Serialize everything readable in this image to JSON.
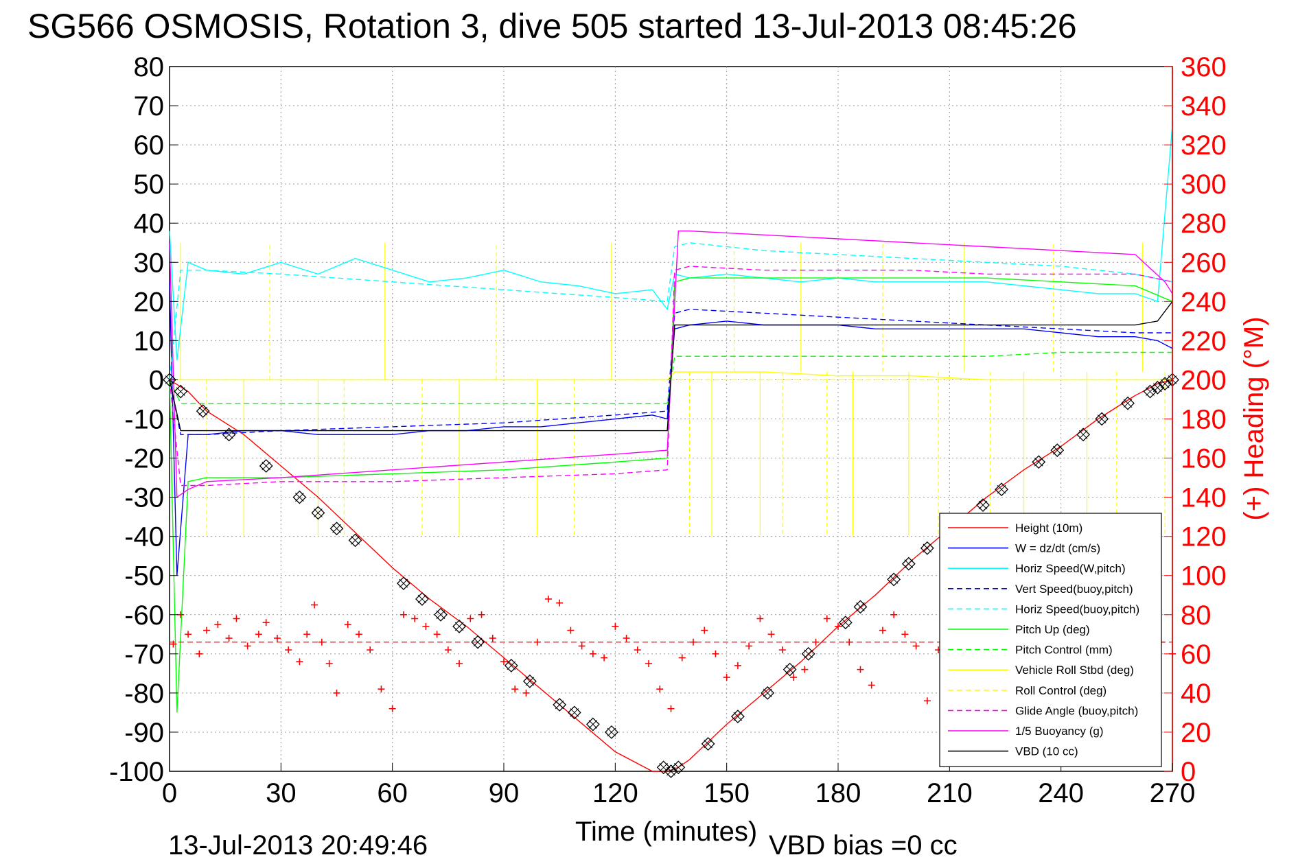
{
  "chart_data": {
    "type": "line",
    "title": "SG566 OSMOSIS, Rotation 3, dive 505 started 13-Jul-2013 08:45:26",
    "xlabel": "Time (minutes)",
    "ylabel_right": "(+) Heading (°M)",
    "footer_timestamp": "13-Jul-2013 20:49:46",
    "footer_vbd": "VBD bias =0 cc",
    "xlim": [
      0,
      270
    ],
    "ylim": [
      -100,
      80
    ],
    "ylim_right": [
      0,
      360
    ],
    "x_ticks": [
      "0",
      "30",
      "60",
      "90",
      "120",
      "150",
      "180",
      "210",
      "240",
      "270"
    ],
    "y_ticks": [
      "80",
      "70",
      "60",
      "50",
      "40",
      "30",
      "20",
      "10",
      "0",
      "-10",
      "-20",
      "-30",
      "-40",
      "-50",
      "-60",
      "-70",
      "-80",
      "-90",
      "-100"
    ],
    "y_right_ticks": [
      "360",
      "340",
      "320",
      "300",
      "280",
      "260",
      "240",
      "220",
      "200",
      "180",
      "160",
      "140",
      "120",
      "100",
      "80",
      "60",
      "40",
      "20",
      "0"
    ],
    "grid": true,
    "legend_position": "bottom-right",
    "series": [
      {
        "name": "Height (10m)",
        "color": "#ff0000",
        "style": "solid",
        "x": [
          0,
          5,
          10,
          20,
          30,
          40,
          50,
          60,
          70,
          80,
          90,
          100,
          110,
          120,
          130,
          134,
          137,
          140,
          150,
          160,
          170,
          180,
          190,
          200,
          210,
          220,
          230,
          240,
          250,
          260,
          266,
          270
        ],
        "y": [
          0,
          -3,
          -8,
          -14,
          -22,
          -30,
          -39,
          -48,
          -56,
          -63,
          -71,
          -79,
          -87,
          -95,
          -100,
          -100,
          -99,
          -97,
          -88,
          -80,
          -72,
          -63,
          -55,
          -46,
          -38,
          -30,
          -23,
          -17,
          -10,
          -4,
          -1,
          0
        ]
      },
      {
        "name": "W = dz/dt (cm/s)",
        "color": "#0000ff",
        "style": "solid",
        "x": [
          0,
          2,
          5,
          10,
          20,
          30,
          40,
          50,
          60,
          70,
          80,
          90,
          100,
          110,
          120,
          130,
          134,
          136,
          140,
          150,
          160,
          170,
          180,
          190,
          200,
          210,
          220,
          230,
          240,
          250,
          260,
          266,
          270
        ],
        "y": [
          25,
          -50,
          -14,
          -14,
          -13,
          -13,
          -14,
          -14,
          -14,
          -13,
          -13,
          -12,
          -12,
          -11,
          -10,
          -9,
          -10,
          13,
          14,
          15,
          14,
          14,
          14,
          13,
          13,
          13,
          13,
          13,
          12,
          11,
          11,
          10,
          8
        ]
      },
      {
        "name": "Horiz Speed(W,pitch)",
        "color": "#00ffff",
        "style": "solid",
        "x": [
          0,
          2,
          5,
          10,
          20,
          30,
          40,
          50,
          60,
          70,
          80,
          90,
          100,
          110,
          120,
          130,
          134,
          136,
          140,
          150,
          160,
          170,
          180,
          190,
          200,
          210,
          220,
          230,
          240,
          250,
          260,
          266,
          270
        ],
        "y": [
          38,
          5,
          30,
          28,
          27,
          30,
          27,
          31,
          28,
          25,
          26,
          28,
          25,
          24,
          22,
          23,
          18,
          27,
          26,
          27,
          26,
          25,
          26,
          25,
          25,
          25,
          25,
          24,
          23,
          22,
          22,
          20,
          65
        ]
      },
      {
        "name": "Vert Speed(buoy,pitch)",
        "color": "#0000ff",
        "style": "dashed",
        "x": [
          0,
          3,
          10,
          30,
          60,
          90,
          120,
          134,
          136,
          140,
          160,
          180,
          200,
          220,
          240,
          260,
          270
        ],
        "y": [
          0,
          -14,
          -14,
          -13,
          -12,
          -11,
          -9,
          -8,
          17,
          18,
          17,
          16,
          15,
          14,
          13,
          12,
          12
        ]
      },
      {
        "name": "Horiz Speed(buoy,pitch)",
        "color": "#00ffff",
        "style": "dashed",
        "x": [
          0,
          3,
          10,
          30,
          60,
          90,
          120,
          134,
          136,
          140,
          160,
          180,
          200,
          220,
          240,
          260,
          270
        ],
        "y": [
          0,
          28,
          28,
          27,
          25,
          23,
          21,
          20,
          34,
          35,
          33,
          32,
          31,
          30,
          29,
          27,
          25
        ]
      },
      {
        "name": "Pitch Up (deg)",
        "color": "#00ff00",
        "style": "solid",
        "x": [
          0,
          2,
          5,
          10,
          30,
          60,
          90,
          120,
          134,
          136,
          140,
          160,
          180,
          200,
          220,
          240,
          260,
          270
        ],
        "y": [
          0,
          -85,
          -26,
          -25,
          -25,
          -24,
          -23,
          -21,
          -20,
          25,
          26,
          26,
          26,
          26,
          26,
          25,
          24,
          20
        ]
      },
      {
        "name": "Pitch Control (mm)",
        "color": "#00ff00",
        "style": "dashed",
        "x": [
          0,
          3,
          10,
          30,
          60,
          90,
          120,
          134,
          136,
          140,
          160,
          180,
          200,
          220,
          240,
          260,
          270
        ],
        "y": [
          0,
          -6,
          -6,
          -6,
          -6,
          -6,
          -6,
          -6,
          6,
          6,
          6,
          6,
          6,
          6,
          7,
          7,
          7
        ]
      },
      {
        "name": "Vehicle Roll Stbd (deg)",
        "color": "#ffff00",
        "style": "solid",
        "x": [
          0,
          5,
          10,
          30,
          60,
          90,
          120,
          134,
          136,
          140,
          160,
          180,
          200,
          220,
          240,
          260,
          270
        ],
        "y": [
          0,
          0,
          0,
          0,
          0,
          0,
          0,
          0,
          2,
          2,
          2,
          1,
          1,
          0,
          0,
          0,
          0
        ]
      },
      {
        "name": "Roll Control (deg)",
        "color": "#ffff00",
        "style": "dashed",
        "x": [
          0,
          5,
          10,
          30,
          60,
          90,
          120,
          134,
          136,
          140,
          160,
          180,
          200,
          220,
          240,
          260,
          270
        ],
        "y": [
          0,
          0,
          0,
          0,
          0,
          0,
          0,
          0,
          0,
          0,
          0,
          0,
          0,
          0,
          0,
          0,
          0
        ]
      },
      {
        "name": "Glide Angle (buoy,pitch)",
        "color": "#ff00ff",
        "style": "dashed",
        "x": [
          0,
          3,
          10,
          30,
          60,
          90,
          120,
          134,
          136,
          140,
          160,
          180,
          200,
          220,
          240,
          260,
          270
        ],
        "y": [
          0,
          -27,
          -27,
          -26,
          -26,
          -25,
          -24,
          -23,
          28,
          29,
          28,
          28,
          28,
          27,
          27,
          27,
          25
        ]
      },
      {
        "name": "1/5 Buoyancy (g)",
        "color": "#ff00ff",
        "style": "solid",
        "x": [
          0,
          2,
          5,
          10,
          30,
          60,
          90,
          120,
          134,
          137,
          140,
          160,
          180,
          200,
          220,
          240,
          260,
          268,
          270
        ],
        "y": [
          35,
          -30,
          -28,
          -26,
          -25,
          -23,
          -21,
          -19,
          -18,
          38,
          38,
          37,
          36,
          35,
          34,
          33,
          32,
          25,
          22
        ]
      },
      {
        "name": "VBD (10 cc)",
        "color": "#000000",
        "style": "solid",
        "x": [
          0,
          3,
          10,
          30,
          60,
          90,
          120,
          134,
          136,
          140,
          160,
          180,
          200,
          220,
          240,
          260,
          266,
          270
        ],
        "y": [
          0,
          -13,
          -13,
          -13,
          -13,
          -13,
          -13,
          -13,
          14,
          14,
          14,
          14,
          14,
          14,
          14,
          14,
          15,
          20
        ]
      }
    ],
    "heading_right_axis": {
      "name": "(+) Heading (°M)",
      "color": "#ff0000",
      "marker": "+",
      "target_heading": 66,
      "x": [
        1,
        3,
        5,
        8,
        10,
        13,
        16,
        18,
        21,
        24,
        26,
        29,
        32,
        35,
        37,
        39,
        41,
        43,
        45,
        48,
        51,
        54,
        57,
        60,
        63,
        66,
        69,
        72,
        75,
        78,
        81,
        84,
        87,
        90,
        93,
        96,
        99,
        102,
        105,
        108,
        111,
        114,
        117,
        120,
        123,
        126,
        129,
        132,
        135,
        138,
        141,
        144,
        147,
        150,
        153,
        156,
        159,
        162,
        165,
        168,
        171,
        174,
        177,
        180,
        183,
        186,
        189,
        192,
        195,
        198,
        201,
        204,
        207,
        210,
        213,
        216,
        219,
        222,
        225,
        228,
        231,
        234,
        237,
        240,
        243,
        246,
        249,
        252,
        255,
        258,
        261,
        264,
        267,
        270
      ],
      "y": [
        65,
        80,
        70,
        60,
        72,
        75,
        68,
        78,
        64,
        70,
        76,
        68,
        62,
        56,
        70,
        85,
        66,
        55,
        40,
        75,
        70,
        62,
        42,
        32,
        80,
        78,
        74,
        70,
        62,
        55,
        78,
        80,
        68,
        56,
        42,
        40,
        66,
        88,
        86,
        72,
        64,
        60,
        58,
        74,
        68,
        62,
        55,
        42,
        32,
        58,
        66,
        72,
        60,
        48,
        54,
        64,
        78,
        70,
        62,
        48,
        52,
        66,
        78,
        74,
        66,
        52,
        44,
        72,
        80,
        70,
        64,
        36,
        62,
        82,
        78,
        70,
        58,
        52,
        66,
        74,
        70,
        62,
        48,
        40,
        78,
        82,
        70,
        60,
        44,
        66,
        78,
        72,
        66,
        60
      ]
    },
    "dive_markers": {
      "marker": "diamond-with-x",
      "color": "#000000",
      "x": [
        0,
        3,
        9,
        16,
        26,
        35,
        40,
        45,
        50,
        63,
        68,
        73,
        78,
        83,
        92,
        97,
        105,
        109,
        114,
        119,
        133,
        135,
        137,
        145,
        153,
        161,
        167,
        172,
        182,
        186,
        195,
        199,
        204,
        219,
        224,
        234,
        239,
        246,
        251,
        258,
        264,
        266,
        268,
        270
      ],
      "y": [
        0,
        -3,
        -8,
        -14,
        -22,
        -30,
        -34,
        -38,
        -41,
        -52,
        -56,
        -60,
        -63,
        -67,
        -73,
        -77,
        -83,
        -85,
        -88,
        -90,
        -99,
        -100,
        -99,
        -93,
        -86,
        -80,
        -74,
        -70,
        -62,
        -58,
        -51,
        -47,
        -43,
        -32,
        -28,
        -21,
        -18,
        -14,
        -10,
        -6,
        -3,
        -2,
        -1,
        0
      ]
    },
    "spikes": {
      "roll_spike_x": [
        3,
        10,
        20,
        27,
        40,
        47,
        58,
        68,
        78,
        88,
        99,
        109,
        119,
        140,
        146,
        152,
        159,
        165,
        170,
        177,
        184,
        192,
        199,
        207,
        214,
        221,
        230,
        238,
        247,
        255,
        262,
        268
      ]
    }
  }
}
